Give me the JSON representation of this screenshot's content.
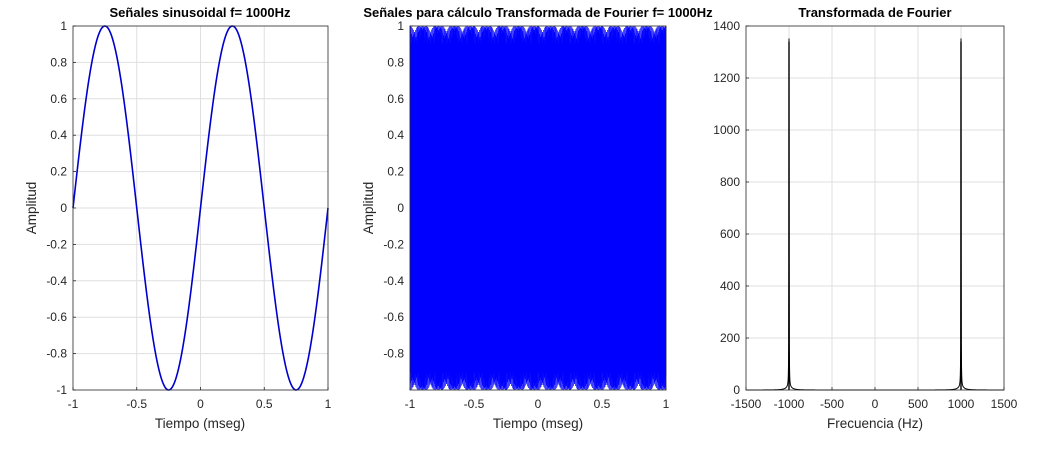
{
  "chart_data": [
    {
      "type": "line",
      "title": "Señales sinusoidal f= 1000Hz",
      "xlabel": "Tiempo (mseg)",
      "ylabel": "Amplitud",
      "xlim": [
        -1,
        1
      ],
      "ylim": [
        -1,
        1
      ],
      "grid": true,
      "x_ticks": [
        "-1",
        "-0.5",
        "0",
        "0.5",
        "1"
      ],
      "y_ticks": [
        "-1",
        "-0.8",
        "-0.6",
        "-0.4",
        "-0.2",
        "0",
        "0.2",
        "0.4",
        "0.6",
        "0.8",
        "1"
      ],
      "series": [
        {
          "function": "sin(2*pi*1000*t)",
          "frequency_hz": 1000,
          "amplitude": 1,
          "color": "#0000cd"
        }
      ]
    },
    {
      "type": "line",
      "title": "Señales para cálculo Transformada de Fourier f= 1000Hz",
      "xlabel": "Tiempo (mseg)",
      "ylabel": "Amplitud",
      "xlim": [
        -1,
        1
      ],
      "ylim": [
        -1,
        1
      ],
      "grid": true,
      "x_ticks": [
        "-1",
        "-0.5",
        "0",
        "0.5",
        "1"
      ],
      "y_ticks": [
        "-0.8",
        "-0.6",
        "-0.4",
        "-0.2",
        "0",
        "0.2",
        "0.4",
        "0.6",
        "0.8",
        "1"
      ],
      "series": [
        {
          "function": "dense sinusoid (aliased)",
          "amplitude": 1,
          "color": "#0000ff"
        }
      ]
    },
    {
      "type": "line",
      "title": "Transformada de Fourier",
      "xlabel": "Frecuencia (Hz)",
      "ylabel": "",
      "xlim": [
        -1500,
        1500
      ],
      "ylim": [
        0,
        1400
      ],
      "grid": true,
      "x_ticks": [
        "-1500",
        "-1000",
        "-500",
        "0",
        "500",
        "1000",
        "1500"
      ],
      "y_ticks": [
        "0",
        "200",
        "400",
        "600",
        "800",
        "1000",
        "1200",
        "1400"
      ],
      "series": [
        {
          "peaks": [
            {
              "x": -1000,
              "y": 1340
            },
            {
              "x": 1000,
              "y": 1340
            }
          ],
          "color": "#000000"
        }
      ]
    }
  ]
}
